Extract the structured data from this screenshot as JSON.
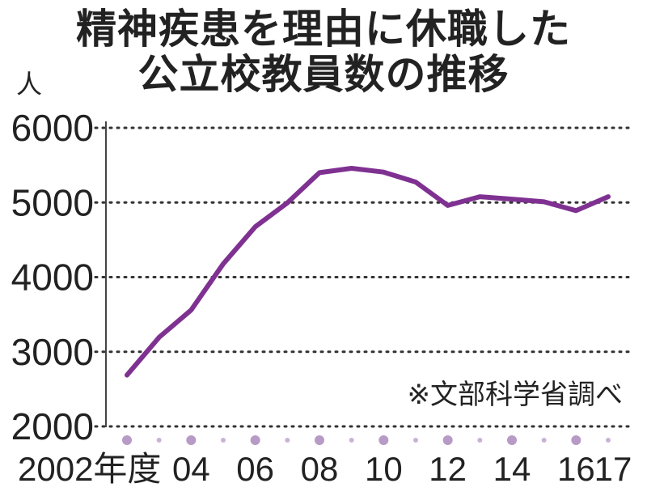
{
  "chart_data": {
    "type": "line",
    "title": [
      "精神疾患を理由に休職した",
      "公立校教員数の推移"
    ],
    "ylabel": "人",
    "source_note": "※文部科学省調べ",
    "ylim": [
      2000,
      6000
    ],
    "yticks": [
      2000,
      3000,
      4000,
      5000,
      6000
    ],
    "ytick_labels": [
      "2000",
      "3000",
      "4000",
      "5000",
      "6000"
    ],
    "x": [
      2002,
      2003,
      2004,
      2005,
      2006,
      2007,
      2008,
      2009,
      2010,
      2011,
      2012,
      2013,
      2014,
      2015,
      2016,
      2017
    ],
    "xtick_labels": [
      {
        "x": 2002,
        "label": "2002年度"
      },
      {
        "x": 2004,
        "label": "04"
      },
      {
        "x": 2006,
        "label": "06"
      },
      {
        "x": 2008,
        "label": "08"
      },
      {
        "x": 2010,
        "label": "10"
      },
      {
        "x": 2012,
        "label": "12"
      },
      {
        "x": 2014,
        "label": "14"
      },
      {
        "x": 2016,
        "label": "16"
      },
      {
        "x": 2017,
        "label": "17"
      }
    ],
    "series": [
      {
        "values": [
          2687,
          3194,
          3559,
          4178,
          4675,
          4995,
          5400,
          5458,
          5407,
          5274,
          4960,
          5078,
          5045,
          5009,
          4891,
          5077
        ]
      }
    ],
    "colors": {
      "line": "#7f3191",
      "marker_major": "#b89ac6",
      "marker_minor": "#c9b3d4",
      "grid": "#333333"
    },
    "grid": true
  }
}
